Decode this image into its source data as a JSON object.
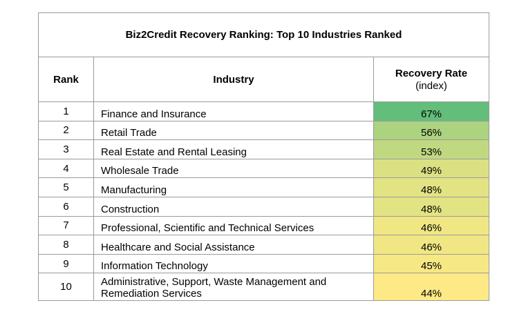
{
  "title": "Biz2Credit Recovery Ranking: Top 10 Industries Ranked",
  "headers": {
    "rank": "Rank",
    "industry": "Industry",
    "rate_line1": "Recovery Rate",
    "rate_line2": "(index)"
  },
  "rows": [
    {
      "rank": "1",
      "industry": "Finance and Insurance",
      "rate": "67%",
      "color": "#63be7b"
    },
    {
      "rank": "2",
      "industry": "Retail Trade",
      "rate": "56%",
      "color": "#acd37f"
    },
    {
      "rank": "3",
      "industry": "Real Estate and Rental Leasing",
      "rate": "53%",
      "color": "#c0d981"
    },
    {
      "rank": "4",
      "industry": "Wholesale Trade",
      "rate": "49%",
      "color": "#dbe182"
    },
    {
      "rank": "5",
      "industry": "Manufacturing",
      "rate": "48%",
      "color": "#e2e383"
    },
    {
      "rank": "6",
      "industry": "Construction",
      "rate": "48%",
      "color": "#e2e383"
    },
    {
      "rank": "7",
      "industry": "Professional, Scientific and Technical Services",
      "rate": "46%",
      "color": "#f0e784"
    },
    {
      "rank": "8",
      "industry": "Healthcare and Social Assistance",
      "rate": "46%",
      "color": "#f0e784"
    },
    {
      "rank": "9",
      "industry": "Information Technology",
      "rate": "45%",
      "color": "#f6e884"
    },
    {
      "rank": "10",
      "industry": "Administrative, Support, Waste Management and Remediation Services",
      "rate": "44%",
      "color": "#fde985"
    }
  ]
}
